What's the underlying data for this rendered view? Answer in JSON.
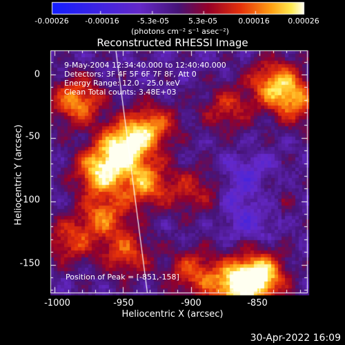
{
  "colorbar": {
    "ticks": [
      "-0.00026",
      "-0.00016",
      "-5.3e-05",
      "5.3e-05",
      "0.00016",
      "0.00026"
    ],
    "tick_values": [
      -0.00026,
      -0.00016,
      -5.3e-05,
      5.3e-05,
      0.00016,
      0.00026
    ],
    "unit": "(photons cm⁻² s⁻¹ asec⁻²)"
  },
  "chart_data": {
    "type": "heatmap",
    "title": "Reconstructed RHESSI Image",
    "xlabel": "Heliocentric X (arcsec)",
    "ylabel": "Heliocentric Y (arcsec)",
    "xlim": [
      -1003,
      -815
    ],
    "ylim": [
      -172,
      19
    ],
    "xticks": [
      -1000,
      -950,
      -900,
      -850
    ],
    "xtick_labels": [
      "-1000",
      "-950",
      "-900",
      "-850"
    ],
    "yticks": [
      0,
      -50,
      -100,
      -150
    ],
    "ytick_labels": [
      "0",
      "-50",
      "-100",
      "-150"
    ],
    "colormap": "hot-blue",
    "color_range": [
      -0.00026,
      0.00026
    ],
    "annotations": [
      "9-May-2004 12:34:40.000 to 12:40:40.000",
      "Detectors: 3F 4F 5F 6F 7F 8F, Att 0",
      "Energy Range: 12.0 - 25.0 keV",
      "Clean     Total counts: 3.48E+03"
    ],
    "peak_label": "Position of Peak = [-851,-158]",
    "peak": [
      -851,
      -158
    ],
    "limb_line": [
      [
        -955,
        19
      ],
      [
        -932,
        -172
      ]
    ],
    "sources": [
      {
        "x": -950,
        "y": -55,
        "intensity": 0.95
      },
      {
        "x": -968,
        "y": -75,
        "intensity": 0.85
      },
      {
        "x": -985,
        "y": -20,
        "intensity": 0.75
      },
      {
        "x": -930,
        "y": -40,
        "intensity": 0.65
      },
      {
        "x": -935,
        "y": -85,
        "intensity": 0.7
      },
      {
        "x": -965,
        "y": -110,
        "intensity": 0.6
      },
      {
        "x": -948,
        "y": -140,
        "intensity": 0.55
      },
      {
        "x": -870,
        "y": -165,
        "intensity": 0.8
      },
      {
        "x": -851,
        "y": -158,
        "intensity": 1.0
      },
      {
        "x": -900,
        "y": -155,
        "intensity": 0.55
      },
      {
        "x": -840,
        "y": -5,
        "intensity": 0.7
      },
      {
        "x": -825,
        "y": -20,
        "intensity": 0.6
      },
      {
        "x": -875,
        "y": -25,
        "intensity": 0.45
      },
      {
        "x": -900,
        "y": -90,
        "intensity": 0.4
      },
      {
        "x": -850,
        "y": -95,
        "intensity": 0.4
      },
      {
        "x": -990,
        "y": -130,
        "intensity": 0.5
      }
    ]
  },
  "timestamp": "30-Apr-2022 16:09"
}
